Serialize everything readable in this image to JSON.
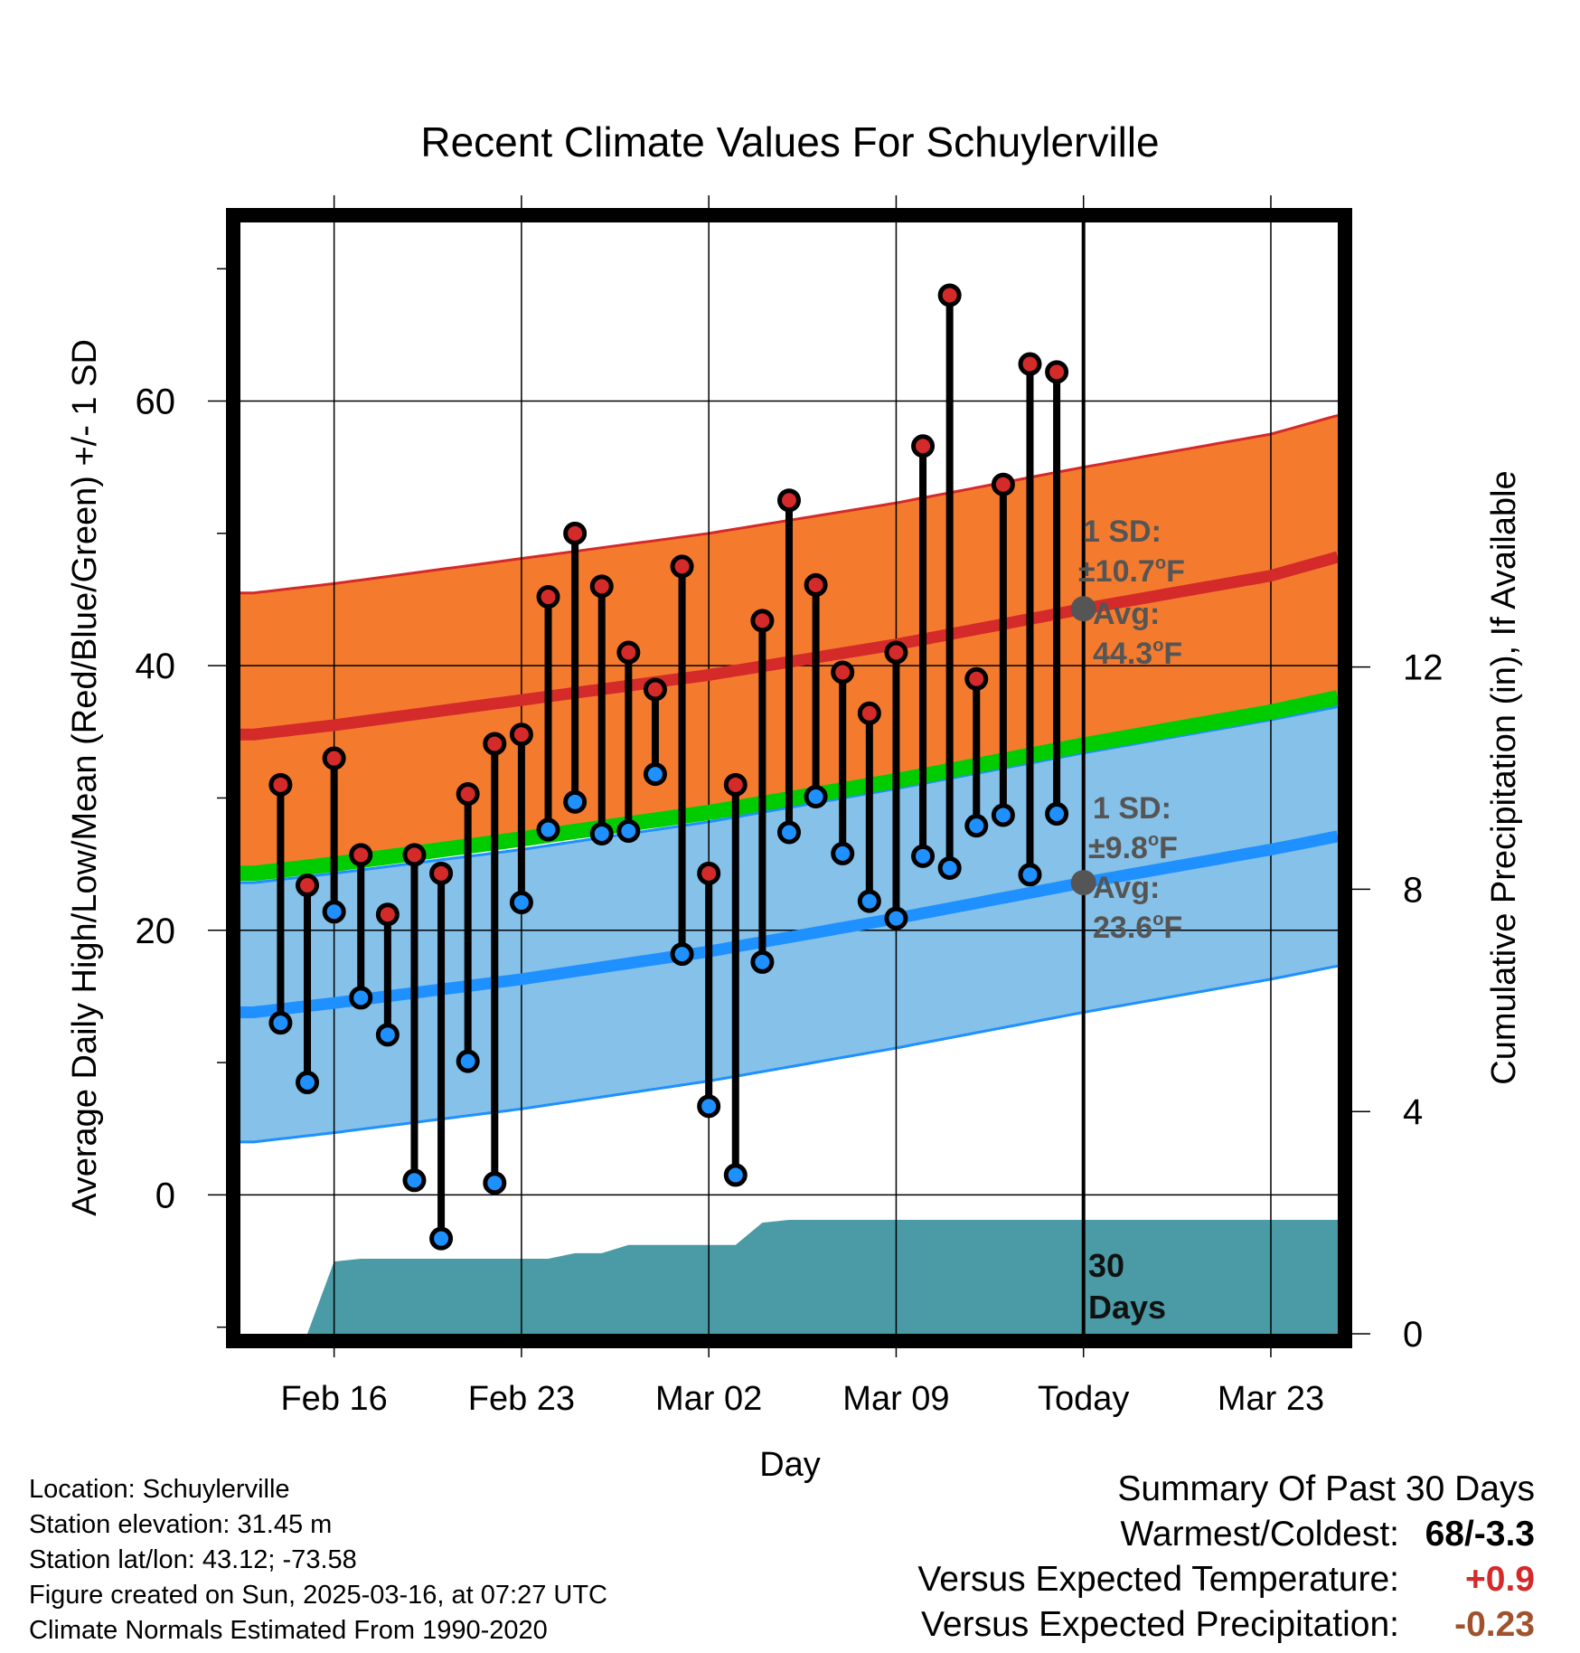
{
  "title": "Recent Climate Values For Schuylerville",
  "chart_data": {
    "type": "line",
    "xlabel": "Day",
    "ylabel_left": "Average Daily High/Low/Mean (Red/Blue/Green) +/- 1 SD",
    "ylabel_right": "Cumulative Precipitation (in), If Available",
    "ylim_left": [
      -10.5,
      73.5
    ],
    "yticks_left": [
      0,
      20,
      40,
      60
    ],
    "ylim_right": [
      0,
      20
    ],
    "yticks_right": [
      0,
      4,
      8,
      12
    ],
    "x_day_range": [
      -31.5,
      9.5
    ],
    "x_ticks": [
      {
        "day": -28,
        "label": "Feb 16"
      },
      {
        "day": -21,
        "label": "Feb 23"
      },
      {
        "day": -14,
        "label": "Mar 02"
      },
      {
        "day": -7,
        "label": "Mar 09"
      },
      {
        "day": 0,
        "label": "Today"
      },
      {
        "day": 7,
        "label": "Mar 23"
      }
    ],
    "grid": true,
    "today_day": 0,
    "observations": {
      "start_day": -30,
      "highs": [
        31,
        23.4,
        33,
        25.7,
        21.2,
        25.7,
        24.3,
        30.3,
        34.1,
        34.8,
        45.2,
        50,
        46,
        41,
        38.2,
        47.5,
        24.3,
        31,
        43.4,
        52.5,
        46.1,
        39.5,
        36.4,
        41,
        56.6,
        68,
        39,
        53.7,
        62.8,
        62.2
      ],
      "lows": [
        13,
        8.5,
        21.4,
        14.9,
        12.1,
        1.1,
        -3.3,
        10.1,
        0.9,
        22.1,
        27.6,
        29.7,
        27.3,
        27.5,
        31.8,
        18.2,
        6.7,
        1.5,
        17.6,
        27.4,
        30.1,
        25.8,
        22.2,
        20.9,
        25.6,
        24.7,
        27.9,
        28.7,
        24.2,
        28.8
      ]
    },
    "normals": {
      "days": [
        -31,
        -28,
        -21,
        -14,
        -7,
        0,
        7,
        10
      ],
      "high_mean": [
        34.8,
        35.5,
        37.4,
        39.3,
        41.6,
        44.3,
        46.8,
        48.5
      ],
      "high_sd": 10.7,
      "low_mean": [
        13.8,
        14.5,
        16.3,
        18.4,
        20.9,
        23.6,
        26.1,
        27.3
      ],
      "low_sd": 9.8,
      "mean_mean": [
        24.3,
        25.0,
        26.9,
        28.9,
        31.3,
        34.0,
        36.5,
        37.8
      ]
    },
    "precip": {
      "days": [
        -30,
        -29,
        -28,
        -27,
        -20,
        -19,
        -18,
        -17,
        -16,
        -13,
        -12,
        -11,
        -10,
        0,
        9.5
      ],
      "cumulative": [
        0,
        0,
        1.3,
        1.35,
        1.35,
        1.45,
        1.45,
        1.6,
        1.6,
        1.6,
        2.0,
        2.05,
        2.05,
        2.05,
        2.05
      ]
    },
    "annotations": {
      "high_sd_line1": "1 SD:",
      "high_sd_line2": "±10.7",
      "high_sd_unit": "F",
      "high_avg_line1": "Avg:",
      "high_avg_line2": "44.3",
      "high_avg_unit": "F",
      "low_sd_line1": "1 SD:",
      "low_sd_line2": "±9.8",
      "low_sd_unit": "F",
      "low_avg_line1": "Avg:",
      "low_avg_line2": "23.6",
      "low_avg_unit": "F",
      "degree_mark": "o",
      "days_line1": "30",
      "days_line2": "Days"
    },
    "colors": {
      "high_band": "#f47b2e",
      "high_line": "#d42a2a",
      "low_band": "#85c1e8",
      "low_line": "#1e90ff",
      "mean_line": "#00cc00",
      "precip": "#4a9ba5",
      "high_dot": "#d42a2a",
      "low_dot": "#1e90ff",
      "annotation": "#555555"
    }
  },
  "meta": {
    "location": "Location: Schuylerville",
    "elevation": "Station elevation: 31.45 m",
    "latlon": "Station lat/lon: 43.12; -73.58",
    "created": "Figure created on Sun, 2025-03-16, at 07:27 UTC",
    "normals": "Climate Normals Estimated From 1990-2020"
  },
  "summary": {
    "heading": "Summary Of Past 30 Days",
    "warmest_label": "Warmest/Coldest:",
    "warmest_value": "68/-3.3",
    "temp_label": "Versus Expected Temperature:",
    "temp_value": "+0.9",
    "temp_color": "#d42a2a",
    "precip_label": "Versus Expected Precipitation:",
    "precip_value": "-0.23",
    "precip_color": "#a0522d"
  }
}
